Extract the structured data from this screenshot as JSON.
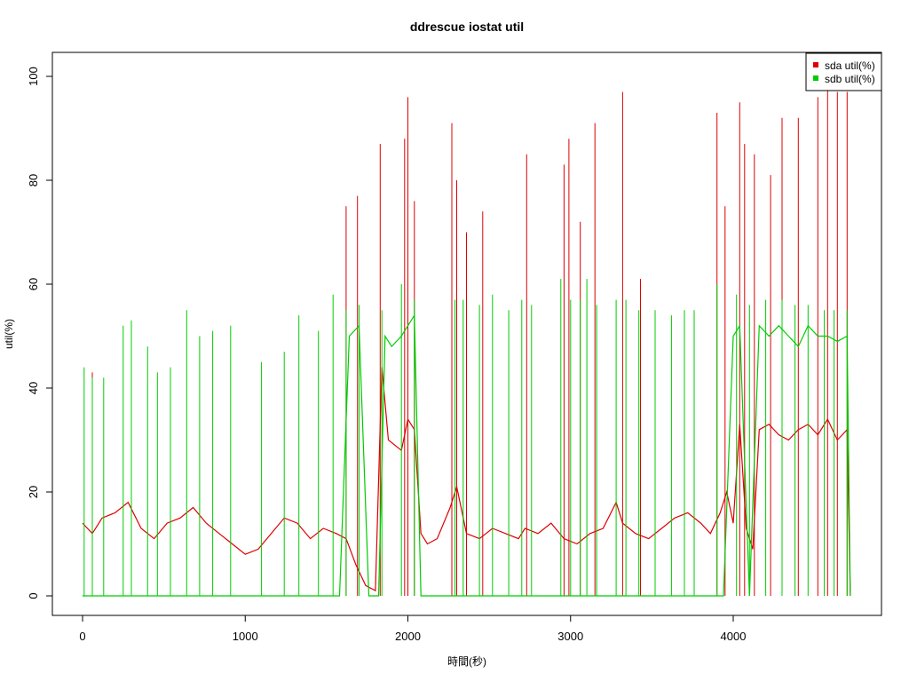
{
  "chart_data": {
    "type": "line",
    "title": "ddrescue iostat util",
    "xlabel": "時間(秒)",
    "ylabel": "util(%)",
    "xlim": [
      0,
      4800
    ],
    "ylim": [
      0,
      100
    ],
    "xticks": [
      0,
      1000,
      2000,
      3000,
      4000
    ],
    "yticks": [
      0,
      20,
      40,
      60,
      80,
      100
    ],
    "grid": false,
    "legend_position": "top-right",
    "series": [
      {
        "name": "sda util(%)",
        "color": "#dd0000",
        "x": [
          0,
          60,
          120,
          200,
          280,
          360,
          440,
          520,
          600,
          680,
          760,
          840,
          920,
          1000,
          1080,
          1160,
          1240,
          1320,
          1400,
          1480,
          1560,
          1620,
          1680,
          1740,
          1800,
          1840,
          1880,
          1960,
          2000,
          2040,
          2080,
          2120,
          2180,
          2260,
          2300,
          2360,
          2440,
          2520,
          2600,
          2680,
          2720,
          2800,
          2880,
          2960,
          3040,
          3120,
          3200,
          3280,
          3320,
          3400,
          3480,
          3560,
          3640,
          3720,
          3800,
          3860,
          3920,
          3960,
          4000,
          4040,
          4080,
          4120,
          4160,
          4220,
          4280,
          4340,
          4400,
          4460,
          4520,
          4580,
          4640,
          4700,
          4720
        ],
        "values": [
          14,
          12,
          15,
          16,
          18,
          13,
          11,
          14,
          15,
          17,
          14,
          12,
          10,
          8,
          9,
          12,
          15,
          14,
          11,
          13,
          12,
          11,
          6,
          2,
          1,
          44,
          30,
          28,
          34,
          32,
          12,
          10,
          11,
          17,
          21,
          12,
          11,
          13,
          12,
          11,
          13,
          12,
          14,
          11,
          10,
          12,
          13,
          18,
          14,
          12,
          11,
          13,
          15,
          16,
          14,
          12,
          16,
          20,
          14,
          33,
          13,
          9,
          32,
          33,
          31,
          30,
          32,
          33,
          31,
          34,
          30,
          32,
          0
        ],
        "spikes": [
          [
            60,
            43
          ],
          [
            1620,
            75
          ],
          [
            1690,
            77
          ],
          [
            1830,
            87
          ],
          [
            1980,
            88
          ],
          [
            2000,
            96
          ],
          [
            2040,
            76
          ],
          [
            2270,
            91
          ],
          [
            2300,
            80
          ],
          [
            2360,
            70
          ],
          [
            2460,
            74
          ],
          [
            2730,
            85
          ],
          [
            2960,
            83
          ],
          [
            2990,
            88
          ],
          [
            3060,
            72
          ],
          [
            3150,
            91
          ],
          [
            3320,
            97
          ],
          [
            3430,
            61
          ],
          [
            3900,
            93
          ],
          [
            3950,
            75
          ],
          [
            4040,
            95
          ],
          [
            4070,
            87
          ],
          [
            4130,
            85
          ],
          [
            4230,
            81
          ],
          [
            4300,
            92
          ],
          [
            4400,
            92
          ],
          [
            4520,
            96
          ],
          [
            4580,
            98
          ],
          [
            4640,
            97
          ],
          [
            4700,
            97
          ]
        ]
      },
      {
        "name": "sdb util(%)",
        "color": "#00cc00",
        "x": [
          0,
          100,
          200,
          300,
          400,
          500,
          600,
          700,
          800,
          900,
          1000,
          1100,
          1200,
          1300,
          1400,
          1500,
          1580,
          1640,
          1700,
          1760,
          1820,
          1860,
          1900,
          1960,
          2000,
          2040,
          2080,
          2120,
          2200,
          2280,
          2360,
          2440,
          2520,
          2600,
          2680,
          2760,
          2840,
          2920,
          3000,
          3080,
          3160,
          3240,
          3320,
          3400,
          3480,
          3560,
          3640,
          3720,
          3800,
          3880,
          3940,
          4000,
          4040,
          4100,
          4160,
          4220,
          4280,
          4340,
          4400,
          4460,
          4520,
          4580,
          4640,
          4700,
          4720
        ],
        "values": [
          0,
          0,
          0,
          0,
          0,
          0,
          0,
          0,
          0,
          0,
          0,
          0,
          0,
          0,
          0,
          0,
          0,
          50,
          52,
          0,
          0,
          50,
          48,
          50,
          52,
          54,
          0,
          0,
          0,
          0,
          0,
          0,
          0,
          0,
          0,
          0,
          0,
          0,
          0,
          0,
          0,
          0,
          0,
          0,
          0,
          0,
          0,
          0,
          0,
          0,
          0,
          50,
          52,
          0,
          52,
          50,
          52,
          50,
          48,
          52,
          50,
          50,
          49,
          50,
          0
        ],
        "spikes": [
          [
            10,
            44
          ],
          [
            60,
            42
          ],
          [
            130,
            42
          ],
          [
            250,
            52
          ],
          [
            300,
            53
          ],
          [
            400,
            48
          ],
          [
            460,
            43
          ],
          [
            540,
            44
          ],
          [
            640,
            55
          ],
          [
            720,
            50
          ],
          [
            800,
            51
          ],
          [
            910,
            52
          ],
          [
            1100,
            45
          ],
          [
            1240,
            47
          ],
          [
            1330,
            54
          ],
          [
            1450,
            51
          ],
          [
            1540,
            58
          ],
          [
            1620,
            55
          ],
          [
            1700,
            56
          ],
          [
            1840,
            55
          ],
          [
            1960,
            60
          ],
          [
            2040,
            57
          ],
          [
            2290,
            57
          ],
          [
            2340,
            57
          ],
          [
            2440,
            56
          ],
          [
            2520,
            58
          ],
          [
            2620,
            55
          ],
          [
            2700,
            57
          ],
          [
            2760,
            56
          ],
          [
            2940,
            61
          ],
          [
            3000,
            57
          ],
          [
            3060,
            57
          ],
          [
            3100,
            61
          ],
          [
            3160,
            56
          ],
          [
            3280,
            57
          ],
          [
            3340,
            57
          ],
          [
            3420,
            55
          ],
          [
            3520,
            55
          ],
          [
            3620,
            54
          ],
          [
            3700,
            55
          ],
          [
            3760,
            55
          ],
          [
            3900,
            60
          ],
          [
            4020,
            58
          ],
          [
            4100,
            56
          ],
          [
            4200,
            57
          ],
          [
            4300,
            57
          ],
          [
            4380,
            56
          ],
          [
            4460,
            56
          ],
          [
            4560,
            55
          ],
          [
            4620,
            55
          ],
          [
            4700,
            55
          ]
        ]
      }
    ]
  }
}
